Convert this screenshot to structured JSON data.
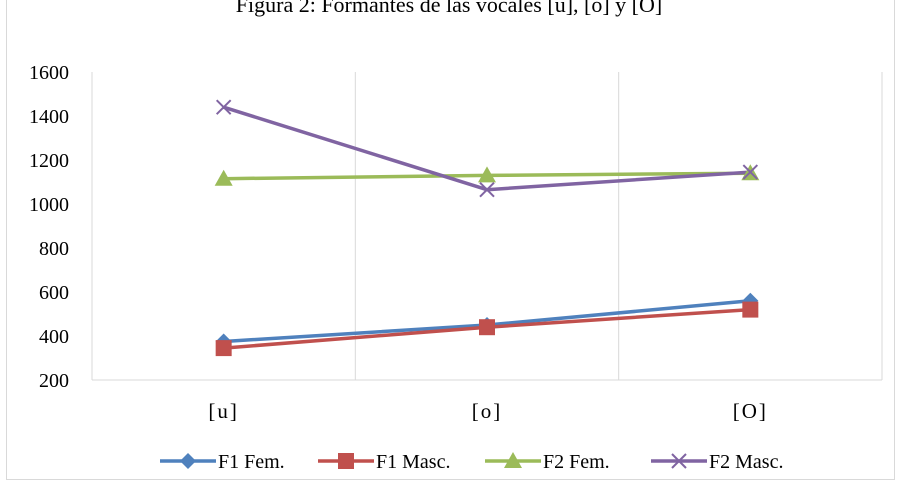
{
  "chart_data": {
    "type": "line",
    "title": "Figura 2: Formantes de las vocales [u], [o] y [O]",
    "xlabel": "",
    "ylabel": "",
    "categories": [
      "[u]",
      "[o]",
      "[O]"
    ],
    "ylim": [
      200,
      1600
    ],
    "yticks": [
      "200",
      "400",
      "600",
      "800",
      "1000",
      "1200",
      "1400",
      "1600"
    ],
    "grid": "vertical",
    "legend_position": "bottom",
    "series": [
      {
        "name": "F1 Fem.",
        "values": [
          375,
          450,
          560
        ],
        "color": "#4f81bd",
        "marker": "diamond"
      },
      {
        "name": "F1 Masc.",
        "values": [
          345,
          440,
          520
        ],
        "color": "#c0504d",
        "marker": "square"
      },
      {
        "name": "F2 Fem.",
        "values": [
          1115,
          1130,
          1140
        ],
        "color": "#9bbb59",
        "marker": "triangle"
      },
      {
        "name": "F2 Masc.",
        "values": [
          1440,
          1065,
          1145
        ],
        "color": "#8064a2",
        "marker": "x"
      }
    ]
  }
}
